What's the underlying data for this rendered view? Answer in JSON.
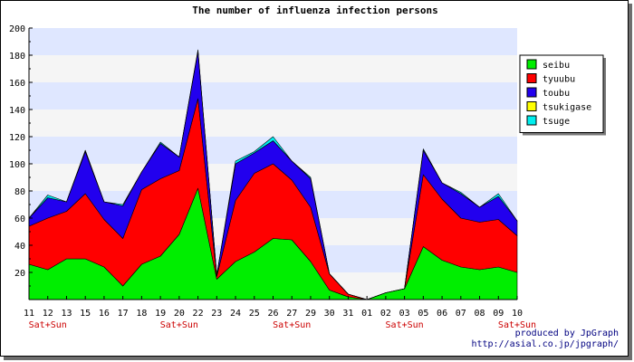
{
  "chart_data": {
    "type": "area",
    "stacked": true,
    "title": "The number of influenza infection persons",
    "categories": [
      "11",
      "12",
      "13",
      "15",
      "16",
      "17",
      "18",
      "19",
      "20",
      "22",
      "23",
      "24",
      "25",
      "26",
      "27",
      "29",
      "30",
      "31",
      "01",
      "02",
      "03",
      "05",
      "06",
      "07",
      "08",
      "09",
      "10"
    ],
    "special_labels": [
      {
        "index": 1,
        "text": "Sat+Sun"
      },
      {
        "index": 8,
        "text": "Sat+Sun"
      },
      {
        "index": 14,
        "text": "Sat+Sun"
      },
      {
        "index": 20,
        "text": "Sat+Sun"
      },
      {
        "index": 26,
        "text": "Sat+Sun"
      }
    ],
    "ylim": [
      0,
      200
    ],
    "yticks": [
      20,
      40,
      60,
      80,
      100,
      120,
      140,
      160,
      180,
      200
    ],
    "grid": true,
    "legend_position": "right",
    "series": [
      {
        "name": "seibu",
        "color": "#00ee00",
        "values": [
          26,
          22,
          30,
          30,
          24,
          10,
          26,
          32,
          48,
          82,
          15,
          28,
          35,
          45,
          44,
          28,
          7,
          2,
          0,
          5,
          8,
          39,
          29,
          24,
          22,
          24,
          20
        ]
      },
      {
        "name": "tyuubu",
        "color": "#ff0000",
        "values": [
          28,
          38,
          35,
          48,
          35,
          35,
          55,
          57,
          47,
          66,
          2,
          45,
          58,
          55,
          44,
          40,
          12,
          2,
          0,
          0,
          0,
          53,
          45,
          36,
          35,
          35,
          27
        ]
      },
      {
        "name": "toubu",
        "color": "#2200ee",
        "values": [
          6,
          15,
          7,
          31,
          13,
          24,
          13,
          26,
          10,
          35,
          1,
          27,
          15,
          17,
          14,
          21,
          0,
          0,
          0,
          0,
          0,
          18,
          12,
          18,
          11,
          17,
          11
        ]
      },
      {
        "name": "tsukigase",
        "color": "#ffff00",
        "values": [
          0,
          0,
          0,
          0,
          0,
          0,
          0,
          0,
          0,
          0,
          0,
          0,
          0,
          0,
          0,
          0,
          0,
          0,
          0,
          0,
          0,
          0,
          0,
          0,
          0,
          0,
          0
        ]
      },
      {
        "name": "tsuge",
        "color": "#00eeee",
        "values": [
          0,
          2,
          0,
          1,
          0,
          1,
          0,
          1,
          0,
          1,
          0,
          2,
          1,
          3,
          0,
          1,
          0,
          0,
          0,
          0,
          0,
          1,
          0,
          1,
          0,
          2,
          0
        ]
      }
    ]
  },
  "credit": {
    "line1": "produced by JpGraph",
    "line2": "http://asial.co.jp/jpgraph/"
  }
}
